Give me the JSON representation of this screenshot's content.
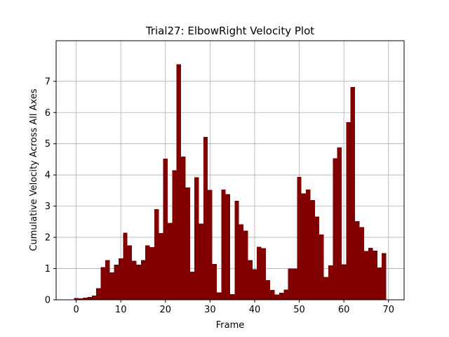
{
  "chart_data": {
    "type": "bar",
    "title": "Trial27: ElbowRight Velocity Plot",
    "xlabel": "Frame",
    "ylabel": "Cumulative Velocity Across All Axes",
    "xlim": [
      -4.5,
      73.5
    ],
    "ylim": [
      0,
      8.3
    ],
    "xticks": [
      0,
      10,
      20,
      30,
      40,
      50,
      60,
      70
    ],
    "yticks": [
      0,
      1,
      2,
      3,
      4,
      5,
      6,
      7
    ],
    "grid": true,
    "bar_color": "#800000",
    "x": [
      0,
      1,
      2,
      3,
      4,
      5,
      6,
      7,
      8,
      9,
      10,
      11,
      12,
      13,
      14,
      15,
      16,
      17,
      18,
      19,
      20,
      21,
      22,
      23,
      24,
      25,
      26,
      27,
      28,
      29,
      30,
      31,
      32,
      33,
      34,
      35,
      36,
      37,
      38,
      39,
      40,
      41,
      42,
      43,
      44,
      45,
      46,
      47,
      48,
      49,
      50,
      51,
      52,
      53,
      54,
      55,
      56,
      57,
      58,
      59,
      60,
      61,
      62,
      63,
      64,
      65,
      66,
      67,
      68,
      69
    ],
    "values": [
      0.06,
      0.05,
      0.07,
      0.09,
      0.13,
      0.37,
      1.05,
      1.27,
      0.88,
      1.13,
      1.33,
      2.15,
      1.74,
      1.25,
      1.12,
      1.27,
      1.74,
      1.69,
      2.9,
      2.14,
      4.52,
      2.46,
      4.15,
      7.55,
      4.59,
      3.6,
      0.9,
      3.92,
      2.44,
      5.22,
      3.52,
      1.15,
      0.24,
      3.53,
      3.39,
      0.18,
      3.17,
      2.42,
      2.22,
      1.27,
      0.98,
      1.7,
      1.65,
      0.63,
      0.32,
      0.17,
      0.23,
      0.33,
      1.0,
      1.0,
      3.94,
      3.41,
      3.53,
      3.19,
      2.67,
      2.09,
      0.73,
      1.1,
      4.53,
      4.88,
      1.14,
      5.69,
      6.81,
      2.52,
      2.33,
      1.56,
      1.67,
      1.57,
      1.03,
      1.5
    ]
  }
}
